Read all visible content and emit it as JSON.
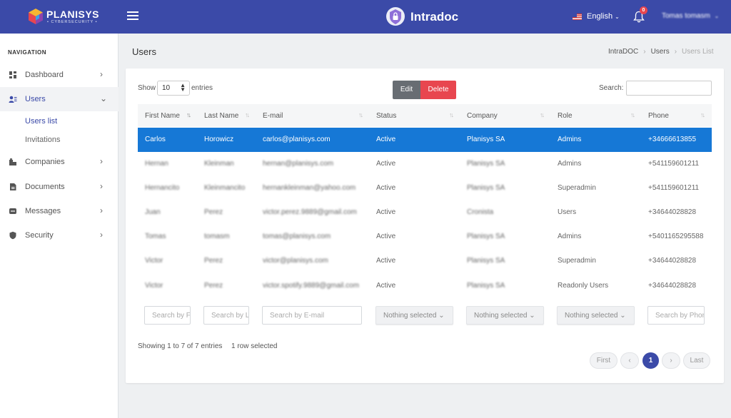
{
  "header": {
    "brand": "PLANISYS",
    "brand_sub": "• CYBERSECURITY •",
    "app_name": "Intradoc",
    "language": "English",
    "notifications_count": "0",
    "user_name": "Tomas tomasm"
  },
  "sidebar": {
    "heading": "NAVIGATION",
    "items": [
      {
        "label": "Dashboard",
        "icon": "dashboard-icon"
      },
      {
        "label": "Users",
        "icon": "users-icon"
      },
      {
        "label": "Companies",
        "icon": "building-icon"
      },
      {
        "label": "Documents",
        "icon": "document-icon"
      },
      {
        "label": "Messages",
        "icon": "message-icon"
      },
      {
        "label": "Security",
        "icon": "shield-icon"
      }
    ],
    "sub_items": [
      "Users list",
      "Invitations"
    ]
  },
  "page": {
    "title": "Users",
    "breadcrumb": [
      "IntraDOC",
      "Users",
      "Users List"
    ]
  },
  "toolbar": {
    "show_label": "Show",
    "entries_value": "10",
    "entries_label": "entries",
    "edit_label": "Edit",
    "delete_label": "Delete",
    "search_label": "Search:"
  },
  "table": {
    "columns": [
      "First Name",
      "Last Name",
      "E-mail",
      "Status",
      "Company",
      "Role",
      "Phone"
    ],
    "rows": [
      {
        "first": "Carlos",
        "last": "Horowicz",
        "email": "carlos@planisys.com",
        "status": "Active",
        "company": "Planisys SA",
        "role": "Admins",
        "phone": "+34666613855",
        "selected": true
      },
      {
        "first": "Hernan",
        "last": "Kleinman",
        "email": "hernan@planisys.com",
        "status": "Active",
        "company": "Planisys SA",
        "role": "Admins",
        "phone": "+541159601211"
      },
      {
        "first": "Hernancito",
        "last": "Kleinmancito",
        "email": "hernankleinman@yahoo.com",
        "status": "Active",
        "company": "Planisys SA",
        "role": "Superadmin",
        "phone": "+541159601211"
      },
      {
        "first": "Juan",
        "last": "Perez",
        "email": "victor.perez.9889@gmail.com",
        "status": "Active",
        "company": "Cronista",
        "role": "Users",
        "phone": "+34644028828"
      },
      {
        "first": "Tomas",
        "last": "tomasm",
        "email": "tomas@planisys.com",
        "status": "Active",
        "company": "Planisys SA",
        "role": "Admins",
        "phone": "+5401165295588"
      },
      {
        "first": "Victor",
        "last": "Perez",
        "email": "victor@planisys.com",
        "status": "Active",
        "company": "Planisys SA",
        "role": "Superadmin",
        "phone": "+34644028828"
      },
      {
        "first": "Victor",
        "last": "Perez",
        "email": "victor.spotify.9889@gmail.com",
        "status": "Active",
        "company": "Planisys SA",
        "role": "Readonly Users",
        "phone": "+34644028828"
      }
    ],
    "filters": {
      "first_placeholder": "Search by First Name",
      "last_placeholder": "Search by Last Name",
      "email_placeholder": "Search by E-mail",
      "status_select": "Nothing selected",
      "company_select": "Nothing selected",
      "role_select": "Nothing selected",
      "phone_placeholder": "Search by Phone"
    }
  },
  "footer": {
    "info": "Showing 1 to 7 of 7 entries",
    "selection": "1 row selected",
    "pagination": {
      "first": "First",
      "prev": "‹",
      "page": "1",
      "next": "›",
      "last": "Last"
    }
  },
  "colors": {
    "brand": "#3b4aa8",
    "selected_row": "#1678d6",
    "delete": "#e8464f"
  }
}
